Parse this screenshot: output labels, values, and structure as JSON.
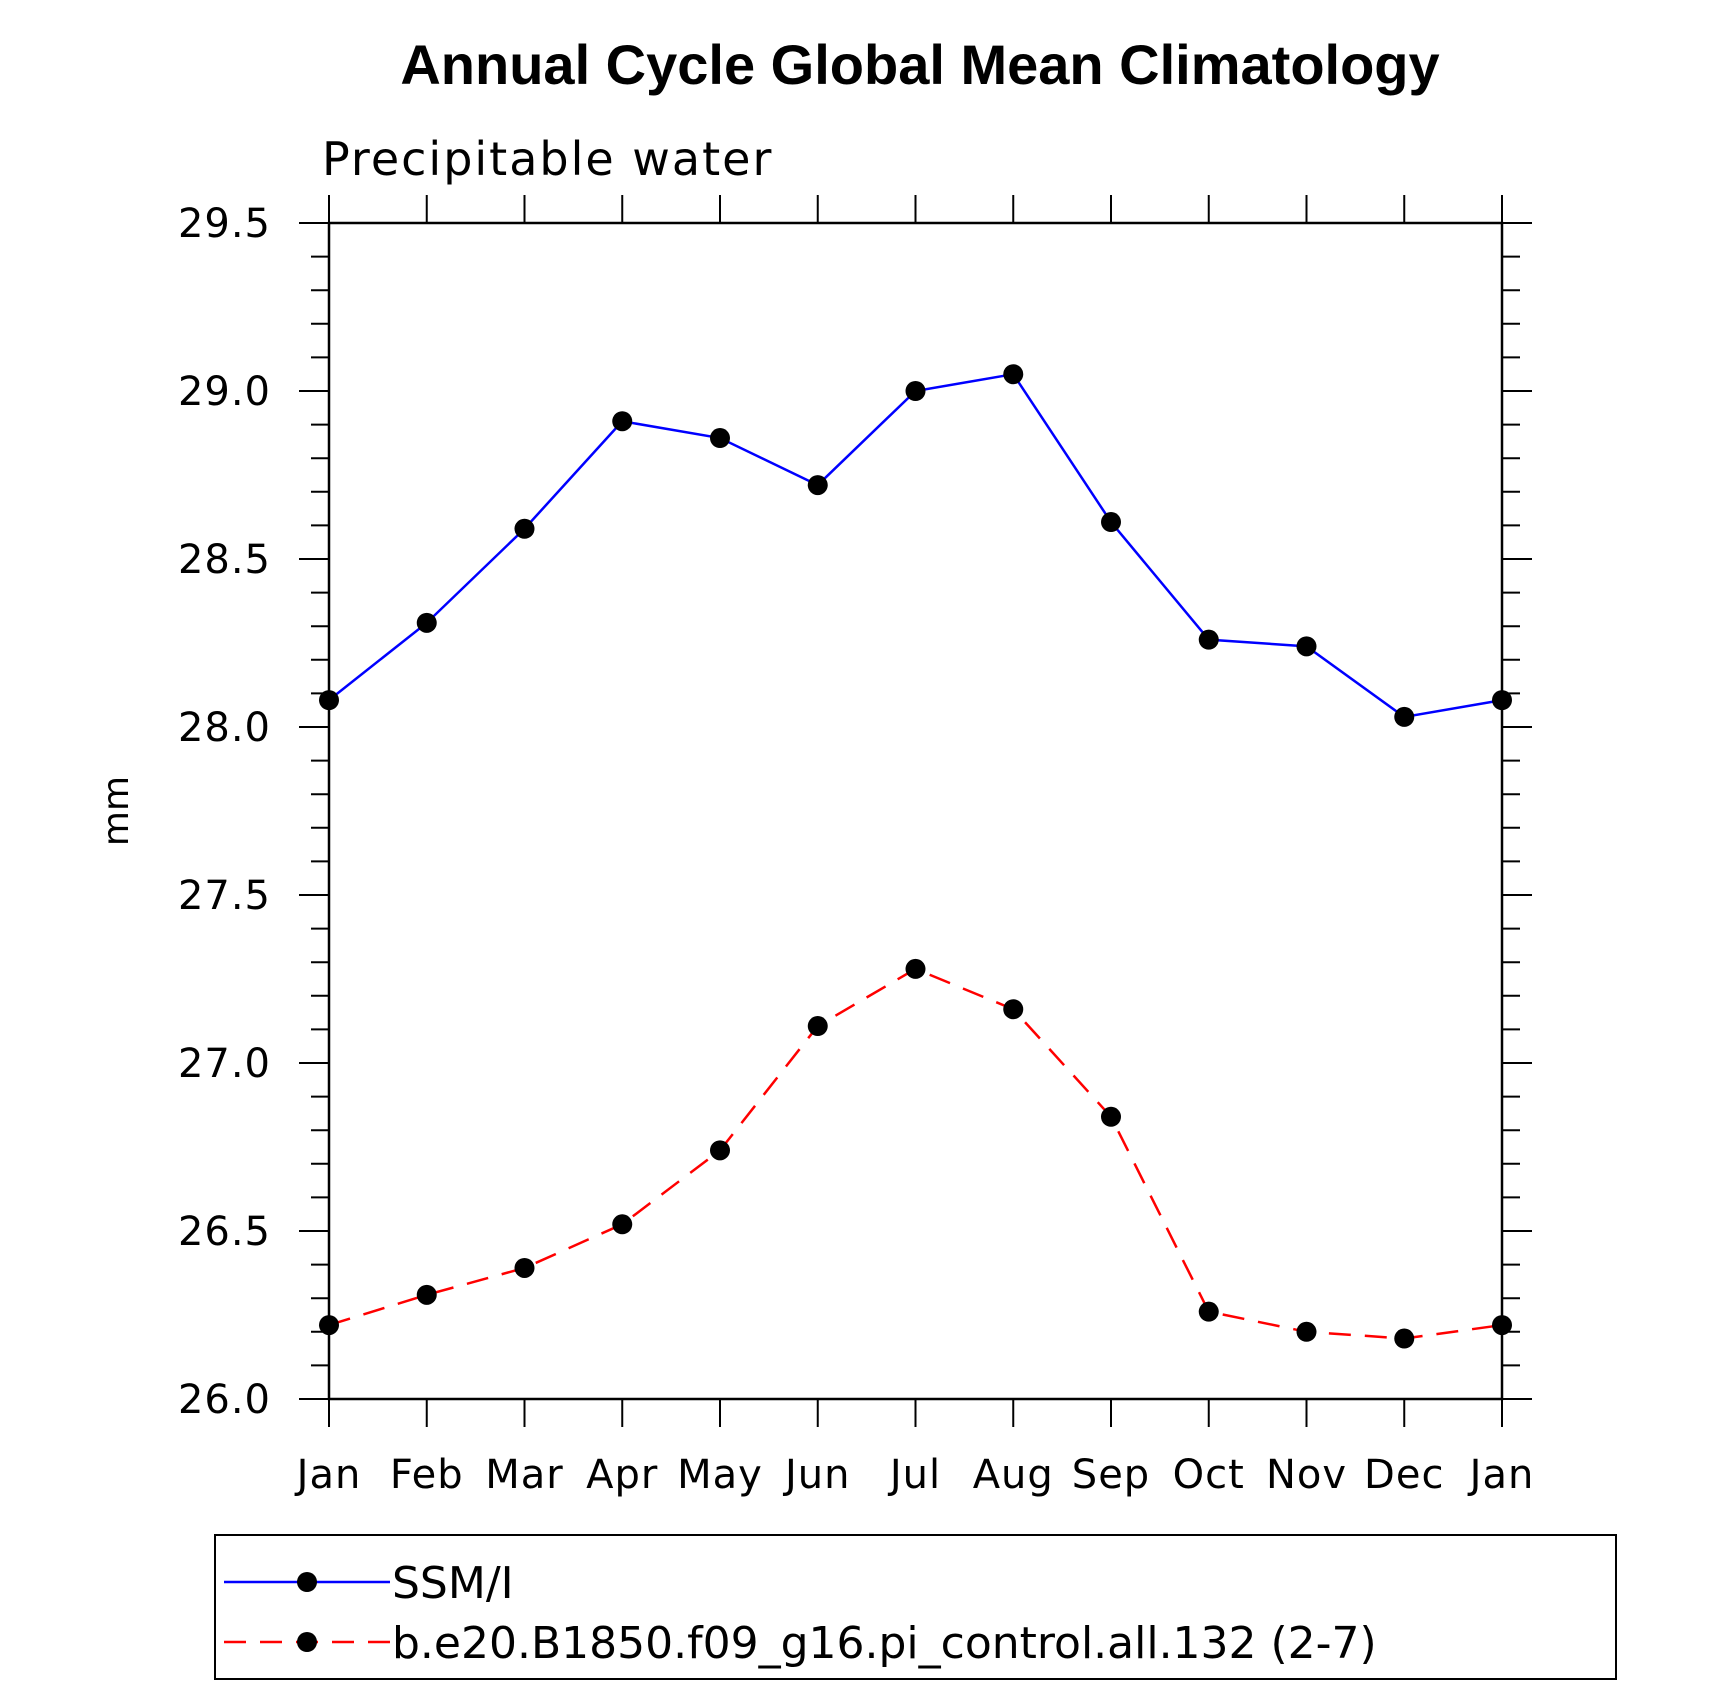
{
  "chart_data": {
    "type": "line",
    "title": "Annual Cycle Global Mean Climatology",
    "subtitle": "Precipitable water",
    "ylabel": "mm",
    "xlabel": "",
    "ylim": [
      26.0,
      29.5
    ],
    "yticks": [
      "29.5",
      "29.0",
      "28.5",
      "28.0",
      "27.5",
      "27.0",
      "26.5",
      "26.0"
    ],
    "ytick_values": [
      29.5,
      29.0,
      28.5,
      28.0,
      27.5,
      27.0,
      26.5,
      26.0
    ],
    "categories": [
      "Jan",
      "Feb",
      "Mar",
      "Apr",
      "May",
      "Jun",
      "Jul",
      "Aug",
      "Sep",
      "Oct",
      "Nov",
      "Dec",
      "Jan"
    ],
    "grid": false,
    "legend_position": "bottom",
    "series": [
      {
        "name": "SSM/I",
        "color": "#0000ff",
        "line_style": "solid",
        "marker": "filled-circle",
        "values": [
          28.08,
          28.31,
          28.59,
          28.91,
          28.86,
          28.72,
          29.0,
          29.05,
          28.61,
          28.26,
          28.24,
          28.03,
          28.08
        ]
      },
      {
        "name": "b.e20.B1850.f09_g16.pi_control.all.132 (2-7)",
        "color": "#ff0000",
        "line_style": "dashed",
        "marker": "filled-circle",
        "values": [
          26.22,
          26.31,
          26.39,
          26.52,
          26.74,
          27.11,
          27.28,
          27.16,
          26.84,
          26.26,
          26.2,
          26.18,
          26.22
        ]
      }
    ]
  }
}
